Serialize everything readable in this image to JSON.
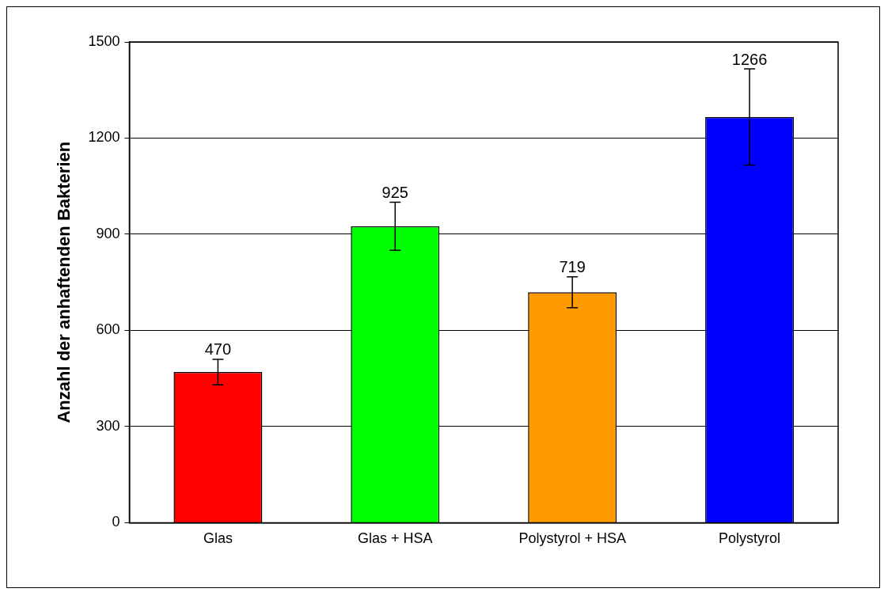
{
  "chart_data": {
    "type": "bar",
    "ylabel": "Anzahl der anhaftenden Bakterien",
    "categories": [
      "Glas",
      "Glas + HSA",
      "Polystyrol + HSA",
      "Polystyrol"
    ],
    "values": [
      470,
      925,
      719,
      1266
    ],
    "colors": [
      "#ff0000",
      "#00ff00",
      "#ff9900",
      "#0000ff"
    ],
    "errors": [
      40,
      75,
      48,
      150
    ],
    "data_labels": true,
    "ylim": [
      0,
      1500
    ],
    "yticks": [
      0,
      300,
      600,
      900,
      1200,
      1500
    ],
    "grid": "y",
    "legend": false
  }
}
